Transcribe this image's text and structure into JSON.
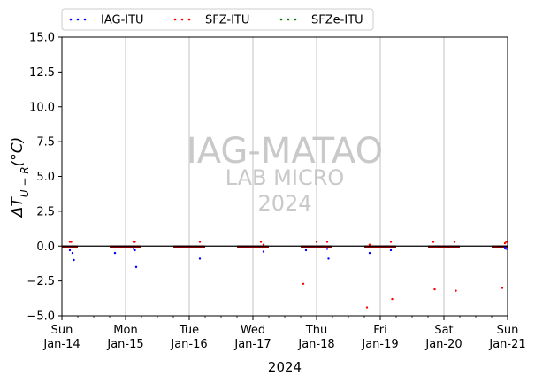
{
  "chart_data": {
    "type": "scatter",
    "xlabel": "2024",
    "ylabel_parts": {
      "main": "ΔT",
      "sub": "U − R",
      "unit": "(°C)"
    },
    "ylim": [
      -5,
      15
    ],
    "yticks": [
      "−5.0",
      "−2.5",
      "0.0",
      "2.5",
      "5.0",
      "7.5",
      "10.0",
      "12.5",
      "15.0"
    ],
    "ytick_values": [
      -5,
      -2.5,
      0,
      2.5,
      5,
      7.5,
      10,
      12.5,
      15
    ],
    "xlim": [
      "2024-01-14",
      "2024-01-21"
    ],
    "xticks": [
      {
        "day": "Sun",
        "date": "Jan-14"
      },
      {
        "day": "Mon",
        "date": "Jan-15"
      },
      {
        "day": "Tue",
        "date": "Jan-16"
      },
      {
        "day": "Wed",
        "date": "Jan-17"
      },
      {
        "day": "Thu",
        "date": "Jan-18"
      },
      {
        "day": "Fri",
        "date": "Jan-19"
      },
      {
        "day": "Sat",
        "date": "Jan-20"
      },
      {
        "day": "Sun",
        "date": "Jan-21"
      }
    ],
    "grid": "vertical",
    "legend_placement": "top, above plot",
    "watermark": {
      "line1": "IAG-MATAO",
      "line2": "LAB MICRO",
      "line3": "2024"
    },
    "zero_line_color": "#000000",
    "series": [
      {
        "name": "IAG-ITU",
        "color": "#0000ff",
        "points": [
          [
            "2024-01-14 03:00",
            -0.3
          ],
          [
            "2024-01-14 04:00",
            -0.5
          ],
          [
            "2024-01-14 04:30",
            -1.0
          ],
          [
            "2024-01-14 20:00",
            -0.5
          ],
          [
            "2024-01-15 03:00",
            -0.2
          ],
          [
            "2024-01-15 03:30",
            -0.3
          ],
          [
            "2024-01-15 04:00",
            -1.5
          ],
          [
            "2024-01-16 04:00",
            -0.9
          ],
          [
            "2024-01-17 04:00",
            -0.4
          ],
          [
            "2024-01-17 20:00",
            -0.3
          ],
          [
            "2024-01-18 04:00",
            -0.2
          ],
          [
            "2024-01-18 04:30",
            -0.9
          ],
          [
            "2024-01-18 20:00",
            -0.5
          ],
          [
            "2024-01-19 04:00",
            -0.3
          ],
          [
            "2024-01-20 23:00",
            -0.1
          ],
          [
            "2024-01-20 23:30",
            -0.2
          ]
        ]
      },
      {
        "name": "SFZ-ITU",
        "color": "#ff0000",
        "points": [
          [
            "2024-01-14 03:00",
            0.3
          ],
          [
            "2024-01-14 03:30",
            0.3
          ],
          [
            "2024-01-15 03:00",
            0.3
          ],
          [
            "2024-01-15 03:30",
            0.3
          ],
          [
            "2024-01-16 04:00",
            0.3
          ],
          [
            "2024-01-17 03:00",
            0.3
          ],
          [
            "2024-01-17 04:00",
            0.1
          ],
          [
            "2024-01-17 19:00",
            -2.7
          ],
          [
            "2024-01-18 00:00",
            0.3
          ],
          [
            "2024-01-18 04:00",
            0.3
          ],
          [
            "2024-01-18 19:00",
            -4.4
          ],
          [
            "2024-01-18 20:00",
            0.1
          ],
          [
            "2024-01-19 04:00",
            0.3
          ],
          [
            "2024-01-19 04:30",
            -3.8
          ],
          [
            "2024-01-19 20:00",
            0.3
          ],
          [
            "2024-01-19 20:30",
            -3.1
          ],
          [
            "2024-01-20 04:00",
            0.3
          ],
          [
            "2024-01-20 04:30",
            -3.2
          ],
          [
            "2024-01-20 22:00",
            -3.0
          ],
          [
            "2024-01-20 23:00",
            0.2
          ],
          [
            "2024-01-20 23:30",
            0.3
          ]
        ]
      },
      {
        "name": "SFZe-ITU",
        "color": "#008000",
        "points": []
      }
    ],
    "baseline_segments": [
      [
        "2024-01-14 00:00",
        "2024-01-14 06:00"
      ],
      [
        "2024-01-14 18:00",
        "2024-01-15 06:00"
      ],
      [
        "2024-01-15 18:00",
        "2024-01-16 06:00"
      ],
      [
        "2024-01-16 18:00",
        "2024-01-17 06:00"
      ],
      [
        "2024-01-17 18:00",
        "2024-01-18 06:00"
      ],
      [
        "2024-01-18 18:00",
        "2024-01-19 06:00"
      ],
      [
        "2024-01-19 18:00",
        "2024-01-20 06:00"
      ],
      [
        "2024-01-20 18:00",
        "2024-01-21 00:00"
      ]
    ],
    "baseline_color": "#8b0000"
  }
}
